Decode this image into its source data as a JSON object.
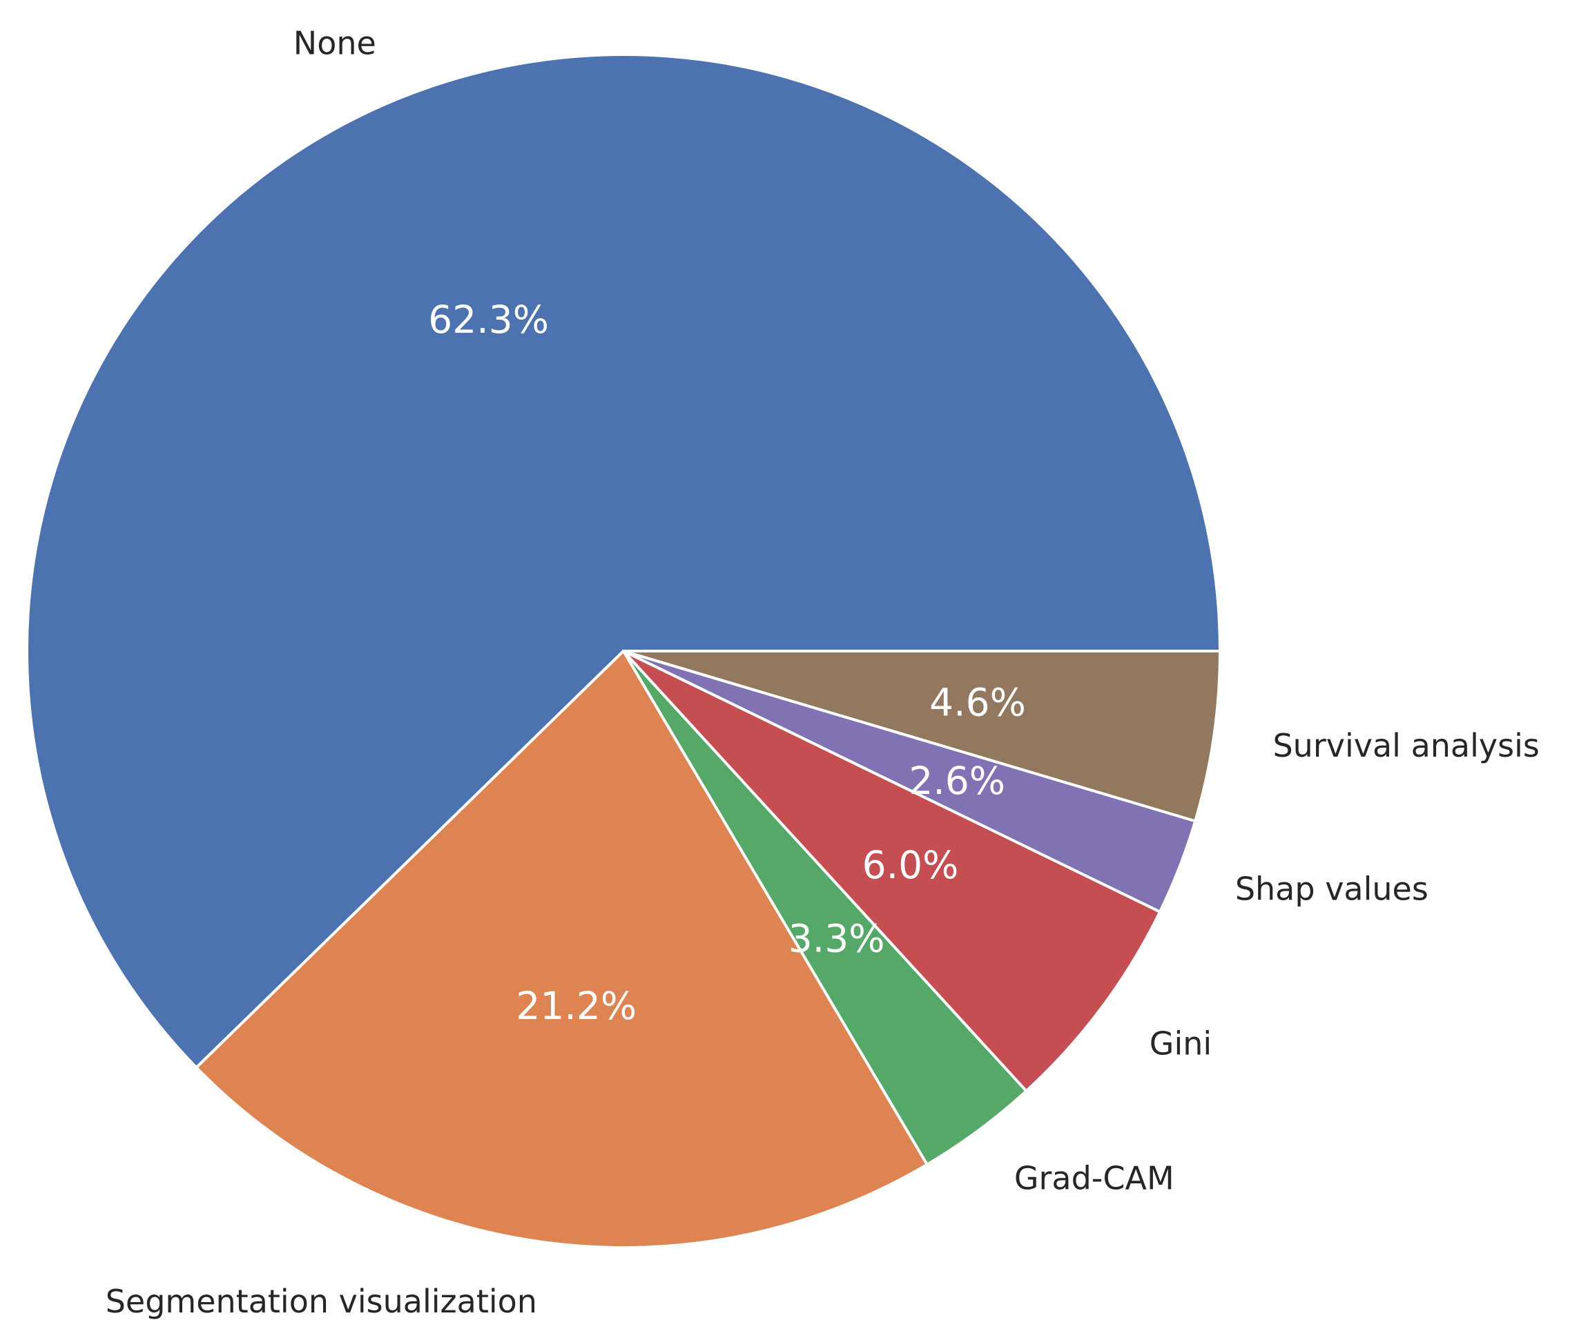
{
  "chart_data": {
    "type": "pie",
    "title": "",
    "start_angle_deg": 0,
    "direction": "counterclockwise",
    "slices": [
      {
        "label": "None",
        "value": 62.3,
        "pct_text": "62.3%",
        "color": "#4C72B0"
      },
      {
        "label": "Segmentation visualization",
        "value": 21.2,
        "pct_text": "21.2%",
        "color": "#DD8452"
      },
      {
        "label": "Grad-CAM",
        "value": 3.3,
        "pct_text": "3.3%",
        "color": "#55A868"
      },
      {
        "label": "Gini",
        "value": 6.0,
        "pct_text": "6.0%",
        "color": "#C44E52"
      },
      {
        "label": "Shap values",
        "value": 2.6,
        "pct_text": "2.6%",
        "color": "#8172B3"
      },
      {
        "label": "Survival analysis",
        "value": 4.6,
        "pct_text": "4.6%",
        "color": "#937860"
      }
    ]
  }
}
